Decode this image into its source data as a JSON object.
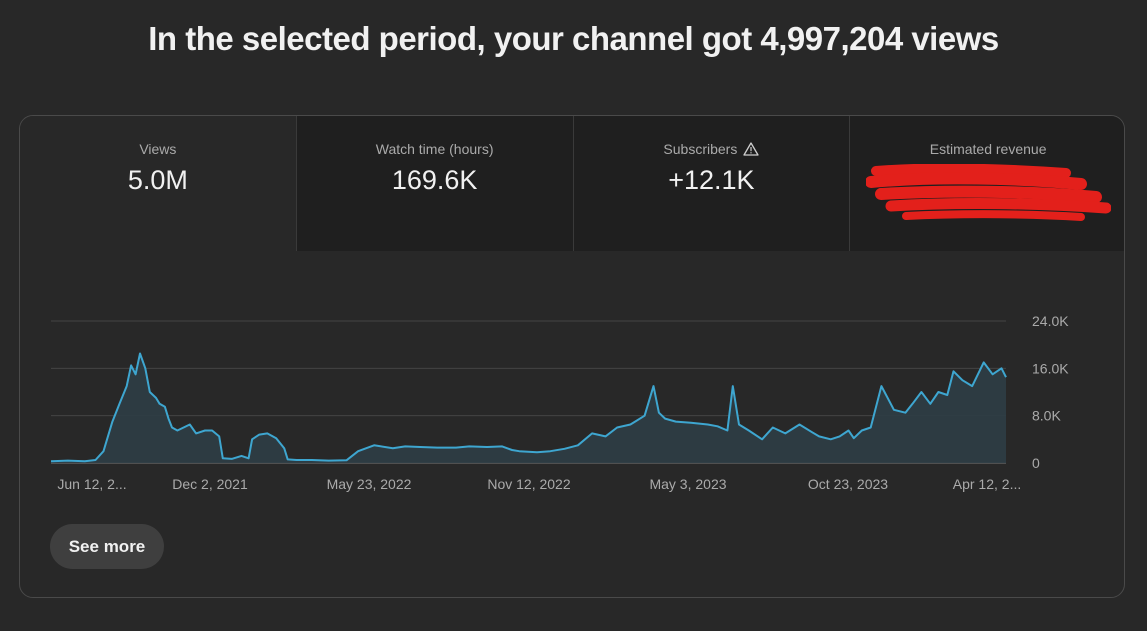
{
  "headline": "In the selected period, your channel got 4,997,204 views",
  "tabs": [
    {
      "label": "Views",
      "value": "5.0M"
    },
    {
      "label": "Watch time (hours)",
      "value": "169.6K"
    },
    {
      "label": "Subscribers",
      "value": "+12.1K",
      "icon": "warning-icon"
    },
    {
      "label": "Estimated revenue",
      "value": ""
    }
  ],
  "colors": {
    "line": "#3ea6d0",
    "redaction": "#e3201b"
  },
  "chart_data": {
    "type": "area",
    "x_ticks": [
      "Jun 12, 2...",
      "Dec 2, 2021",
      "May 23, 2022",
      "Nov 12, 2022",
      "May 3, 2023",
      "Oct 23, 2023",
      "Apr 12, 2..."
    ],
    "y_ticks": [
      "24.0K",
      "16.0K",
      "8.0K",
      "0"
    ],
    "ylim": [
      0,
      24000
    ],
    "grid": true,
    "series": [
      {
        "x": [
          "2021-06-12",
          "2021-07-01",
          "2021-07-20",
          "2021-08-01",
          "2021-08-10",
          "2021-08-20",
          "2021-08-28",
          "2021-09-05",
          "2021-09-10",
          "2021-09-15",
          "2021-09-20",
          "2021-09-26",
          "2021-10-01",
          "2021-10-08",
          "2021-10-12",
          "2021-10-18",
          "2021-10-22",
          "2021-10-26",
          "2021-11-01",
          "2021-11-08",
          "2021-11-15",
          "2021-11-22",
          "2021-12-02",
          "2021-12-10",
          "2021-12-18",
          "2021-12-22",
          "2022-01-01",
          "2022-01-12",
          "2022-01-20",
          "2022-01-24",
          "2022-02-01",
          "2022-02-10",
          "2022-02-20",
          "2022-03-01",
          "2022-03-05",
          "2022-03-15",
          "2022-04-01",
          "2022-04-20",
          "2022-05-10",
          "2022-05-23",
          "2022-06-10",
          "2022-07-01",
          "2022-07-15",
          "2022-08-01",
          "2022-08-20",
          "2022-09-10",
          "2022-09-25",
          "2022-10-15",
          "2022-11-01",
          "2022-11-12",
          "2022-11-20",
          "2022-12-10",
          "2022-12-25",
          "2023-01-10",
          "2023-01-25",
          "2023-02-10",
          "2023-02-25",
          "2023-03-10",
          "2023-03-25",
          "2023-04-10",
          "2023-04-20",
          "2023-04-26",
          "2023-05-03",
          "2023-05-15",
          "2023-06-01",
          "2023-06-20",
          "2023-07-01",
          "2023-07-12",
          "2023-07-18",
          "2023-07-25",
          "2023-08-05",
          "2023-08-20",
          "2023-09-01",
          "2023-09-15",
          "2023-10-01",
          "2023-10-15",
          "2023-10-23",
          "2023-11-05",
          "2023-11-15",
          "2023-11-25",
          "2023-12-01",
          "2023-12-10",
          "2023-12-20",
          "2024-01-01",
          "2024-01-15",
          "2024-01-28",
          "2024-02-05",
          "2024-02-15",
          "2024-02-25",
          "2024-03-05",
          "2024-03-15",
          "2024-03-22",
          "2024-04-01",
          "2024-04-12",
          "2024-04-25",
          "2024-05-05",
          "2024-05-15",
          "2024-05-20"
        ],
        "y": [
          300,
          400,
          300,
          500,
          2000,
          7000,
          10000,
          13000,
          16500,
          15000,
          18500,
          16000,
          12000,
          11000,
          10000,
          9500,
          7500,
          6000,
          5500,
          6000,
          6500,
          5000,
          5500,
          5500,
          4500,
          800,
          700,
          1200,
          800,
          4000,
          4800,
          5000,
          4200,
          2500,
          600,
          500,
          500,
          400,
          450,
          2000,
          3000,
          2500,
          2800,
          2700,
          2600,
          2600,
          2800,
          2700,
          2800,
          2200,
          2000,
          1800,
          2000,
          2400,
          3000,
          5000,
          4500,
          6000,
          6500,
          8000,
          13000,
          8500,
          7500,
          7000,
          6800,
          6500,
          6200,
          5500,
          13000,
          6500,
          5500,
          4000,
          6000,
          5000,
          6500,
          5200,
          4500,
          4000,
          4500,
          5500,
          4200,
          5500,
          6000,
          13000,
          9000,
          8500,
          10000,
          12000,
          10000,
          12000,
          11500,
          15500,
          14000,
          13000,
          17000,
          15000,
          16000,
          14500
        ]
      }
    ]
  },
  "see_more_label": "See more"
}
